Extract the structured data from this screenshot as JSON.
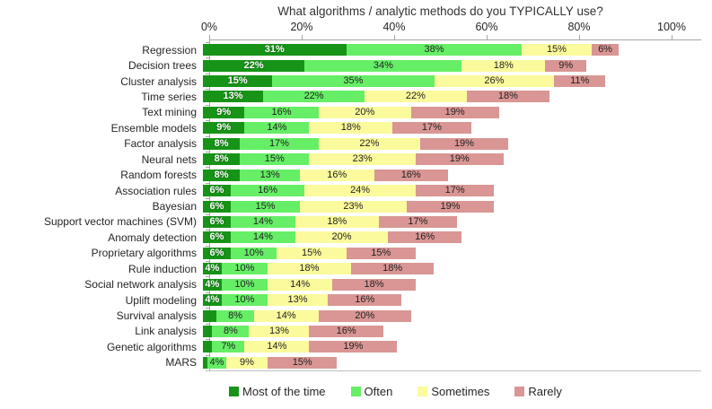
{
  "chart_data": {
    "type": "bar",
    "orientation": "horizontal",
    "stacked": true,
    "title": "What algorithms / analytic methods do you TYPICALLY use?",
    "xlabel": "",
    "ylabel": "",
    "xlim": [
      0,
      100
    ],
    "x_tick_labels": [
      "0%",
      "20%",
      "40%",
      "60%",
      "80%",
      "100%"
    ],
    "x_tick_values": [
      0,
      20,
      40,
      60,
      80,
      100
    ],
    "grid": false,
    "legend_position": "bottom",
    "value_suffix": "%",
    "min_value_for_label": 4,
    "categories": [
      "Regression",
      "Decision trees",
      "Cluster analysis",
      "Time series",
      "Text mining",
      "Ensemble models",
      "Factor analysis",
      "Neural nets",
      "Random forests",
      "Association rules",
      "Bayesian",
      "Support vector machines (SVM)",
      "Anomaly detection",
      "Proprietary algorithms",
      "Rule induction",
      "Social network analysis",
      "Uplift modeling",
      "Survival analysis",
      "Link analysis",
      "Genetic algorithms",
      "MARS"
    ],
    "series": [
      {
        "name": "Most of the time",
        "color": "#179417",
        "label_style": "white-bold",
        "values": [
          31,
          22,
          15,
          13,
          9,
          9,
          8,
          8,
          8,
          6,
          6,
          6,
          6,
          6,
          4,
          4,
          4,
          3,
          2,
          2,
          1
        ]
      },
      {
        "name": "Often",
        "color": "#66ee66",
        "label_style": "dark",
        "values": [
          38,
          34,
          35,
          22,
          16,
          14,
          17,
          15,
          13,
          16,
          15,
          14,
          14,
          10,
          10,
          10,
          10,
          8,
          8,
          7,
          4
        ]
      },
      {
        "name": "Sometimes",
        "color": "#fbfa9c",
        "label_style": "dark",
        "values": [
          15,
          18,
          26,
          22,
          20,
          18,
          22,
          23,
          16,
          24,
          23,
          18,
          20,
          15,
          18,
          14,
          13,
          14,
          13,
          14,
          9
        ]
      },
      {
        "name": "Rarely",
        "color": "#d99694",
        "label_style": "dark",
        "values": [
          6,
          9,
          11,
          18,
          19,
          17,
          19,
          19,
          16,
          17,
          19,
          17,
          16,
          15,
          18,
          18,
          16,
          20,
          16,
          19,
          15
        ]
      }
    ]
  },
  "colors": {
    "axis_line": "#a6a6a6",
    "bottom_line": "#bfbfbf",
    "text": "#262626",
    "title_text": "#333333"
  },
  "layout_values": {
    "note": "chart rendered from chart_data only"
  }
}
